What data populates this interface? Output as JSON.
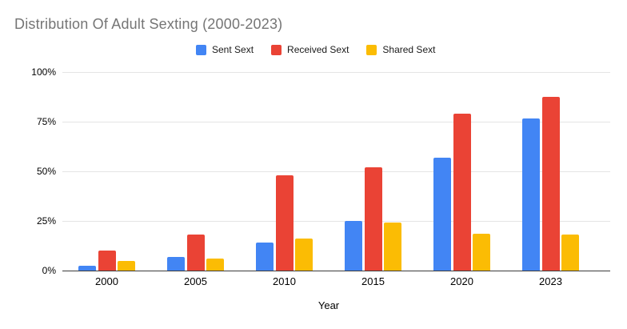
{
  "title": "Distribution Of Adult Sexting (2000-2023)",
  "xaxis_title": "Year",
  "legend": {
    "items": [
      {
        "label": "Sent Sext",
        "color": "#4285F4"
      },
      {
        "label": "Received Sext",
        "color": "#EA4335"
      },
      {
        "label": "Shared Sext",
        "color": "#FBBC04"
      }
    ]
  },
  "chart_data": {
    "type": "bar",
    "title": "Distribution Of Adult Sexting (2000-2023)",
    "categories": [
      "2000",
      "2005",
      "2010",
      "2015",
      "2020",
      "2023"
    ],
    "series": [
      {
        "name": "Sent Sext",
        "color": "#4285F4",
        "values": [
          2.5,
          7,
          14,
          25,
          57,
          76.5
        ]
      },
      {
        "name": "Received Sext",
        "color": "#EA4335",
        "values": [
          10,
          18,
          48,
          52,
          79,
          87.5
        ]
      },
      {
        "name": "Shared Sext",
        "color": "#FBBC04",
        "values": [
          5,
          6,
          16,
          24,
          18.5,
          18
        ]
      }
    ],
    "xlabel": "Year",
    "ylabel": "",
    "ylim": [
      0,
      100
    ],
    "yticks_percent": [
      0,
      25,
      50,
      75,
      100
    ],
    "ytick_labels": [
      "0%",
      "25%",
      "50%",
      "75%",
      "100%"
    ],
    "grid": true,
    "legend_position": "top"
  },
  "colors": {
    "background": "#ffffff",
    "title_text": "#757575",
    "axis_text": "#000000",
    "gridline": "#e5e5e5",
    "baseline": "#3b3b3b"
  }
}
